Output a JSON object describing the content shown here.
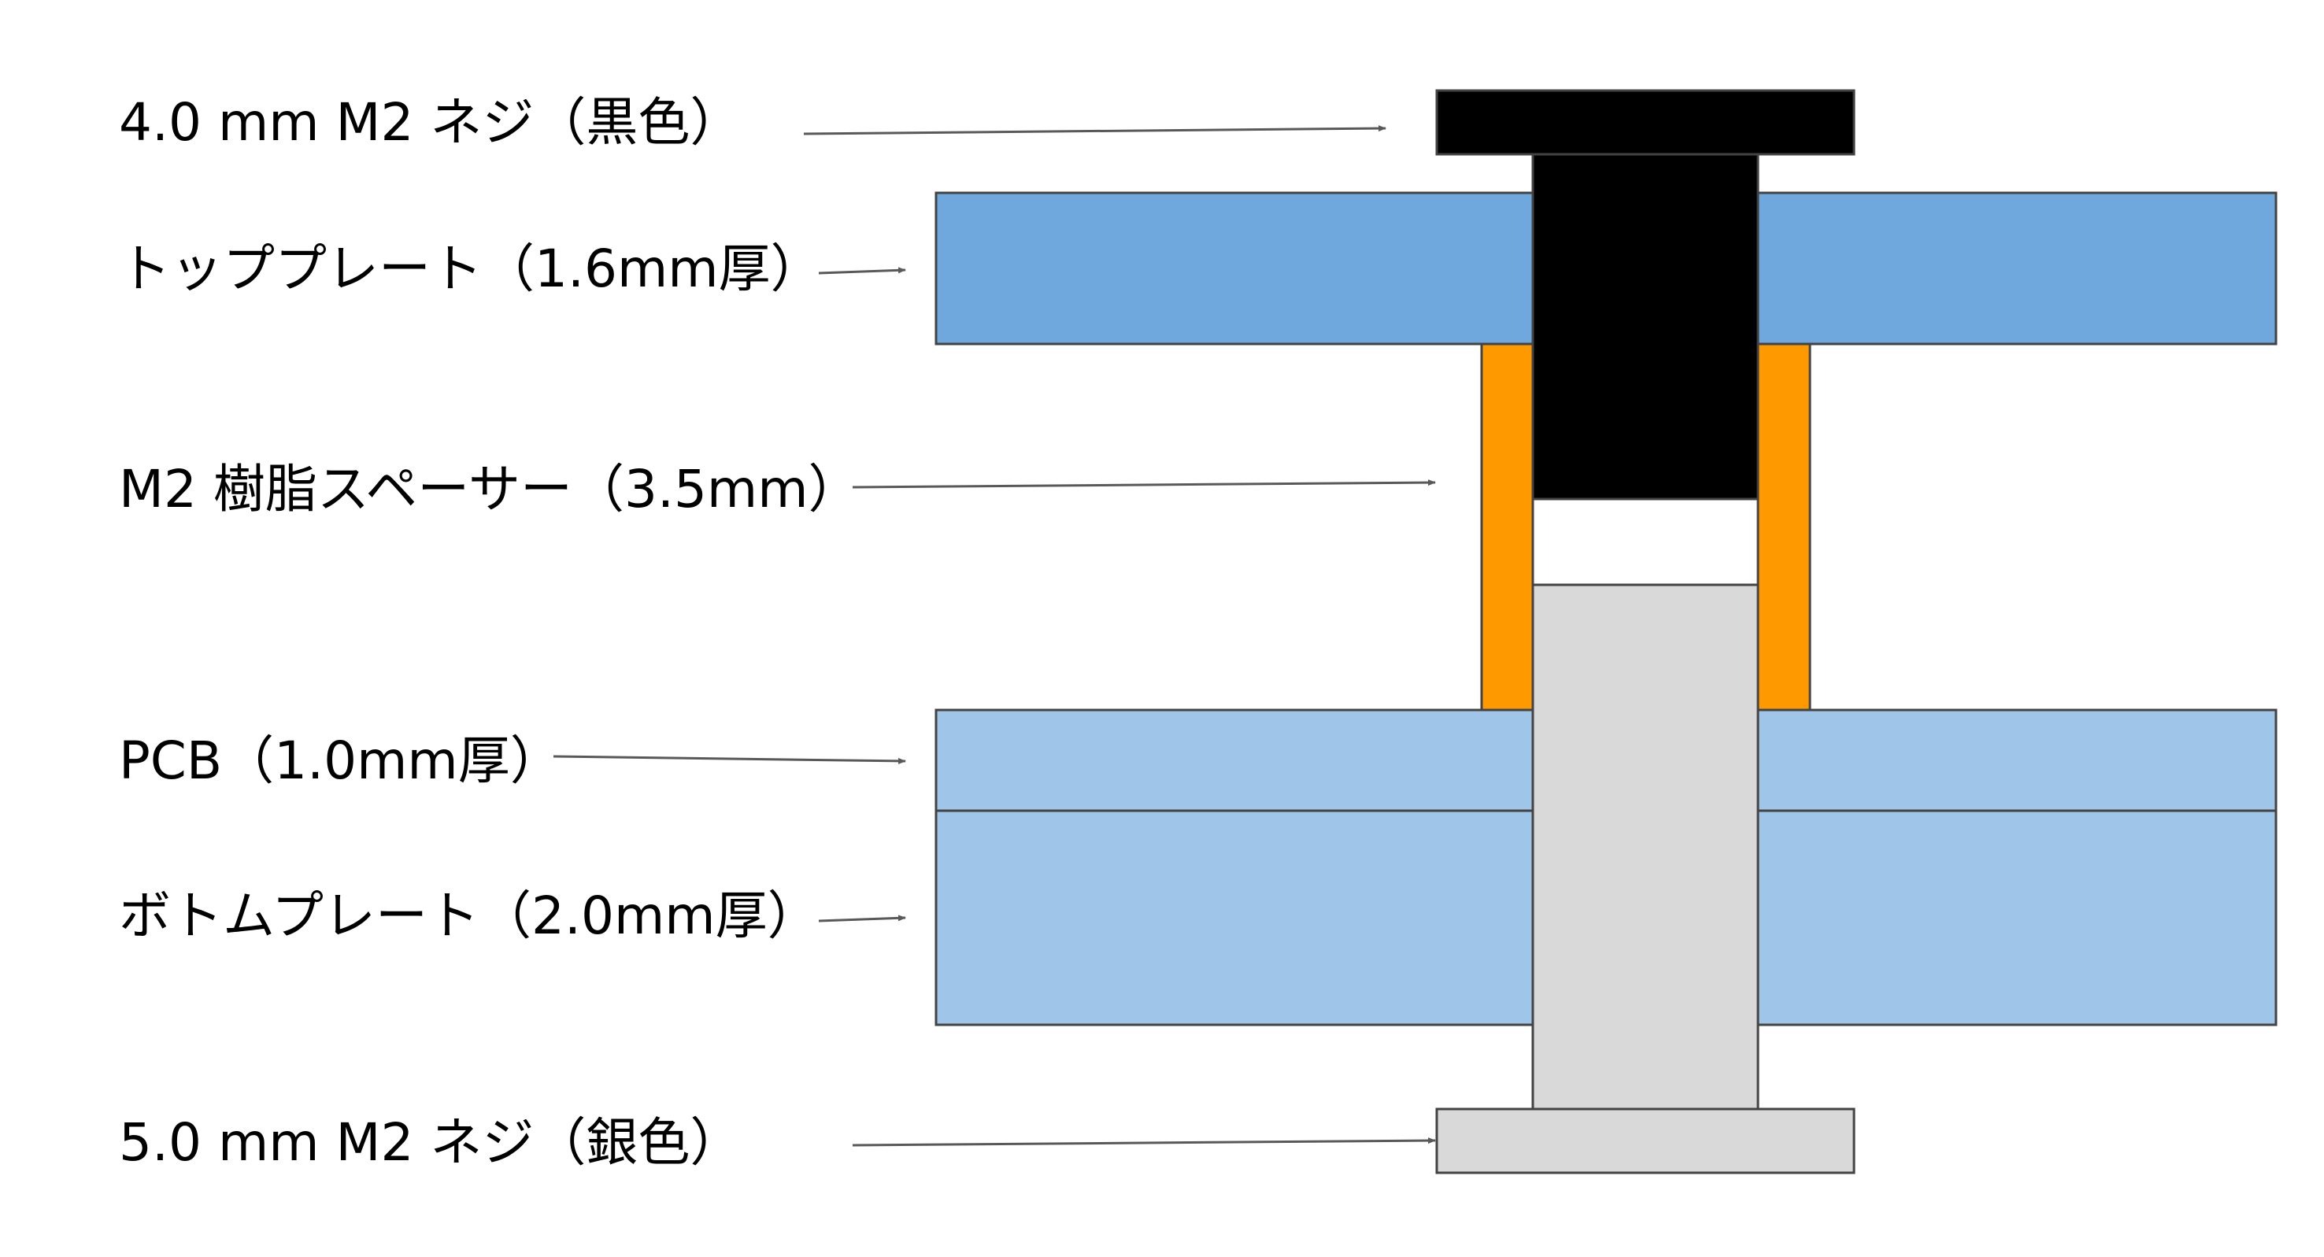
{
  "labels": {
    "top_screw": "4.0 mm M2 ネジ（黒色）",
    "top_plate": "トッププレート（1.6mm厚）",
    "spacer": "M2 樹脂スペーサー（3.5mm）",
    "pcb": "PCB（1.0mm厚）",
    "bottom_plate": "ボトムプレート（2.0mm厚）",
    "bottom_screw": "5.0 mm M2 ネジ（銀色）"
  },
  "colors": {
    "top_plate": "#6fa8dc",
    "pcb": "#9fc5e8",
    "bottom_plate": "#9fc5e8",
    "spacer": "#ff9900",
    "top_screw": "#000000",
    "bottom_screw": "#d9d9d9",
    "outline": "#434343",
    "arrow": "#595959"
  }
}
